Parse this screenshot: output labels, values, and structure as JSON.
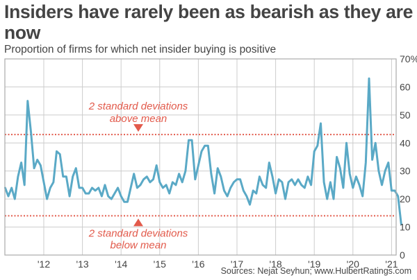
{
  "chart_data": {
    "type": "line",
    "title": "Insiders have rarely been as bearish as they are now",
    "subtitle": "Proportion of firms for which net insider buying is positive",
    "xlabel": "",
    "ylabel": "",
    "ylim": [
      0,
      70
    ],
    "xlim": [
      2011.0,
      2021.1
    ],
    "y_ticks": [
      {
        "value": 0,
        "label": "0"
      },
      {
        "value": 10,
        "label": "10"
      },
      {
        "value": 20,
        "label": "20"
      },
      {
        "value": 30,
        "label": "30"
      },
      {
        "value": 40,
        "label": "40"
      },
      {
        "value": 50,
        "label": "50"
      },
      {
        "value": 60,
        "label": "60"
      },
      {
        "value": 70,
        "label": "70%"
      }
    ],
    "x_ticks": [
      {
        "value": 2012,
        "label": "'12"
      },
      {
        "value": 2013,
        "label": "'13"
      },
      {
        "value": 2014,
        "label": "'14"
      },
      {
        "value": 2015,
        "label": "'15"
      },
      {
        "value": 2016,
        "label": "'16"
      },
      {
        "value": 2017,
        "label": "'17"
      },
      {
        "value": 2018,
        "label": "'18"
      },
      {
        "value": 2019,
        "label": "'19"
      },
      {
        "value": 2020,
        "label": "'20"
      },
      {
        "value": 2021,
        "label": "'21"
      }
    ],
    "grid": true,
    "line_color": "#5aa9c6",
    "reference_color": "#e25a4b",
    "series": [
      {
        "name": "Proportion of firms with positive net insider buying (%)",
        "x_start": 2011.0,
        "x_step_months": 1,
        "values": [
          24,
          21,
          24,
          20,
          28,
          33,
          25,
          55,
          44,
          31,
          34,
          32,
          26,
          20,
          24,
          26,
          37,
          36,
          28,
          28,
          21,
          28,
          31,
          24,
          24,
          22,
          22,
          24,
          23,
          24,
          21,
          25,
          21,
          20,
          22,
          24,
          21,
          19,
          19,
          24,
          29,
          24,
          25,
          27,
          28,
          26,
          27,
          32,
          26,
          24,
          25,
          22,
          26,
          25,
          29,
          26,
          30,
          41,
          41,
          27,
          32,
          37,
          39,
          39,
          29,
          22,
          31,
          28,
          23,
          21,
          24,
          26,
          27,
          27,
          23,
          21,
          18,
          23,
          22,
          28,
          25,
          24,
          33,
          28,
          22,
          27,
          26,
          20,
          26,
          27,
          25,
          27,
          25,
          24,
          28,
          25,
          37,
          39,
          47,
          26,
          20,
          26,
          20,
          35,
          31,
          24,
          40,
          29,
          24,
          28,
          25,
          21,
          33,
          63,
          34,
          40,
          30,
          25,
          30,
          33,
          23,
          23,
          21,
          11
        ]
      }
    ],
    "reference_lines": [
      {
        "name": "upper",
        "value": 43,
        "label_lines": [
          "2 standard deviations",
          "above mean"
        ]
      },
      {
        "name": "lower",
        "value": 14,
        "label_lines": [
          "2 standard deviations",
          "below mean"
        ]
      }
    ],
    "source": "Sources: Nejat Seyhun; www.HulbertRatings.com"
  }
}
